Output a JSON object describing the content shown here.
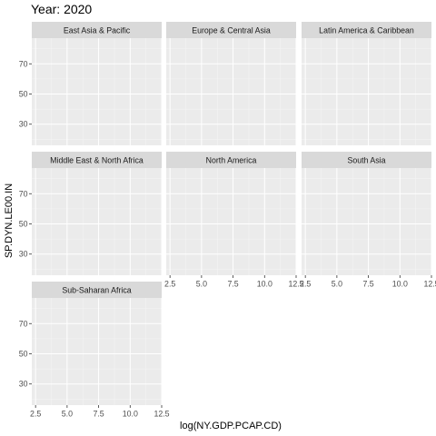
{
  "chart_data": {
    "type": "scatter",
    "title": "Year: 2020",
    "xlabel": "log(NY.GDP.PCAP.CD)",
    "ylabel": "SP.DYN.LE00.IN",
    "xlim": [
      2.2,
      12.5
    ],
    "ylim": [
      16,
      87
    ],
    "x_ticks": [
      2.5,
      5.0,
      7.5,
      10.0,
      12.5
    ],
    "x_tick_labels": [
      "2.5",
      "5.0",
      "7.5",
      "10.0",
      "12.5"
    ],
    "y_ticks": [
      30,
      50,
      70
    ],
    "y_tick_labels": [
      "30",
      "50",
      "70"
    ],
    "grid": true,
    "panels": [
      {
        "name": "East Asia & Pacific",
        "points": []
      },
      {
        "name": "Europe & Central Asia",
        "points": []
      },
      {
        "name": "Latin America & Caribbean",
        "points": []
      },
      {
        "name": "Middle East & North Africa",
        "points": []
      },
      {
        "name": "North America",
        "points": []
      },
      {
        "name": "South Asia",
        "points": []
      },
      {
        "name": "Sub-Saharan Africa",
        "points": []
      }
    ],
    "colors": {
      "panel_bg": "#ebebeb",
      "strip_bg": "#d9d9d9",
      "grid_major": "#ffffff",
      "grid_minor": "#f5f5f5",
      "text": "#1a1a1a",
      "tick_text": "#4d4d4d",
      "tick_mark": "#333333"
    }
  }
}
